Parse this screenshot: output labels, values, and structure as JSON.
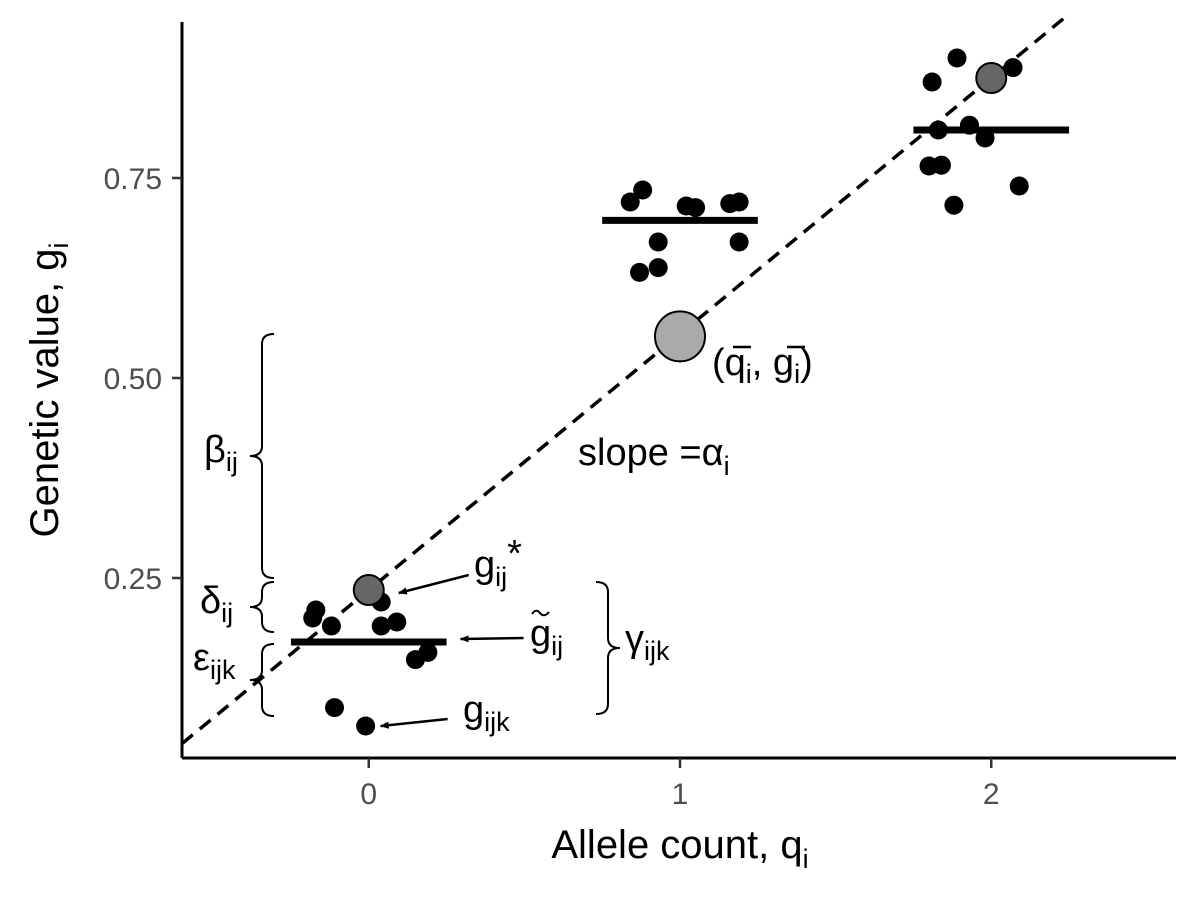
{
  "chart_data": {
    "type": "scatter",
    "xlabel": {
      "main": "Allele count, q",
      "sub": "i"
    },
    "ylabel": {
      "main": "Genetic value, g",
      "sub": "i"
    },
    "xlim": [
      -0.6,
      2.6
    ],
    "ylim": [
      0.025,
      0.95
    ],
    "x_ticks": [
      0,
      1,
      2
    ],
    "x_tick_labels": [
      "0",
      "1",
      "2"
    ],
    "y_ticks": [
      0.25,
      0.5,
      0.75
    ],
    "y_tick_labels": [
      "0.25",
      "0.50",
      "0.75"
    ],
    "grid": false,
    "colors": {
      "points": "#000000",
      "group_point": "#666666",
      "mean_point": "#aaaaaa",
      "line": "#000000"
    },
    "individual_points": [
      {
        "x": -0.18,
        "y": 0.2
      },
      {
        "x": -0.17,
        "y": 0.21
      },
      {
        "x": -0.12,
        "y": 0.19
      },
      {
        "x": 0.04,
        "y": 0.19
      },
      {
        "x": 0.04,
        "y": 0.22
      },
      {
        "x": 0.09,
        "y": 0.195
      },
      {
        "x": 0.15,
        "y": 0.148
      },
      {
        "x": 0.19,
        "y": 0.157
      },
      {
        "x": -0.11,
        "y": 0.088
      },
      {
        "x": -0.01,
        "y": 0.065
      },
      {
        "x": 0.84,
        "y": 0.72
      },
      {
        "x": 0.88,
        "y": 0.735
      },
      {
        "x": 1.02,
        "y": 0.715
      },
      {
        "x": 1.05,
        "y": 0.713
      },
      {
        "x": 1.16,
        "y": 0.718
      },
      {
        "x": 1.19,
        "y": 0.72
      },
      {
        "x": 0.93,
        "y": 0.67
      },
      {
        "x": 1.19,
        "y": 0.67
      },
      {
        "x": 0.87,
        "y": 0.632
      },
      {
        "x": 0.93,
        "y": 0.638
      },
      {
        "x": 1.81,
        "y": 0.87
      },
      {
        "x": 1.89,
        "y": 0.9
      },
      {
        "x": 2.07,
        "y": 0.888
      },
      {
        "x": 1.83,
        "y": 0.81
      },
      {
        "x": 1.93,
        "y": 0.816
      },
      {
        "x": 1.98,
        "y": 0.8
      },
      {
        "x": 1.8,
        "y": 0.765
      },
      {
        "x": 1.84,
        "y": 0.766
      },
      {
        "x": 2.09,
        "y": 0.74
      },
      {
        "x": 1.88,
        "y": 0.716
      }
    ],
    "group_means": [
      {
        "x": 0,
        "y": 0.17,
        "x_from": -0.25,
        "x_to": 0.25
      },
      {
        "x": 1,
        "y": 0.697,
        "x_from": 0.75,
        "x_to": 1.25
      },
      {
        "x": 2,
        "y": 0.81,
        "x_from": 1.75,
        "x_to": 2.25
      }
    ],
    "predicted_points": [
      {
        "x": 0,
        "y": 0.235
      },
      {
        "x": 2,
        "y": 0.875
      }
    ],
    "mean_point": {
      "x": 1,
      "y": 0.552
    },
    "regression_line": {
      "intercept": 0.235,
      "slope": 0.32,
      "style": "dashed"
    },
    "annotations": {
      "mean_label": {
        "open": "(",
        "q": "q",
        "q_sub": "i",
        "sep": ", ",
        "g": "g",
        "g_sub": "i",
        "close": ")"
      },
      "slope_label": {
        "main": "slope =α",
        "sub": "i"
      },
      "gstar_label": {
        "main": "g",
        "sub": "ij",
        "sup": "*"
      },
      "gtilde_label": {
        "main": "g",
        "sub": "ij"
      },
      "gijk_label": {
        "main": "g",
        "sub": "ijk"
      },
      "beta_label": {
        "main": "β",
        "sub": "ij"
      },
      "delta_label": {
        "main": "δ",
        "sub": "ij"
      },
      "epsilon_label": {
        "main": "ε",
        "sub": "ijk"
      },
      "gamma_label": {
        "main": "γ",
        "sub": "ijk"
      }
    }
  }
}
